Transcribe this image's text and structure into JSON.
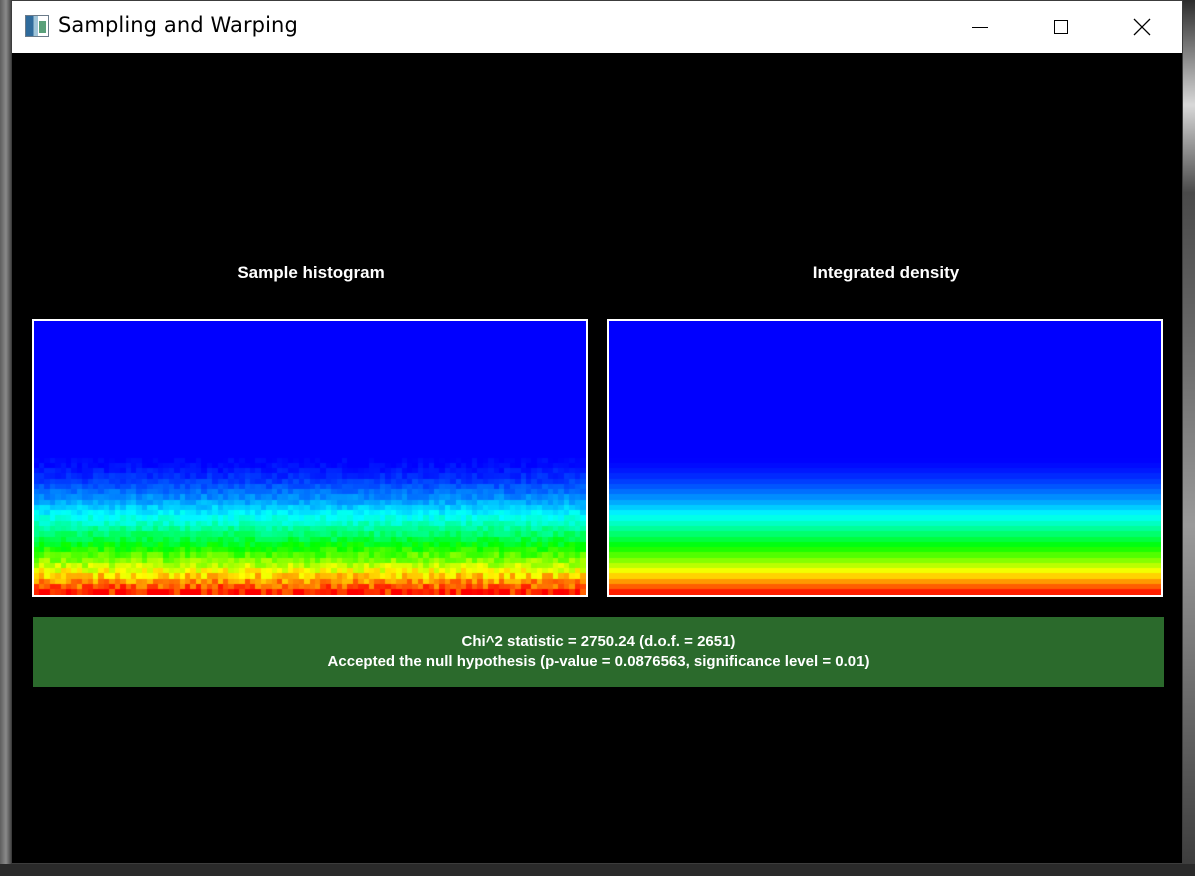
{
  "window": {
    "title": "Sampling and Warping",
    "icon": "app-icon",
    "controls": {
      "minimize_icon": "minimize-icon",
      "maximize_icon": "maximize-icon",
      "close_icon": "close-icon"
    }
  },
  "panels": {
    "histogram": {
      "title": "Sample histogram"
    },
    "density": {
      "title": "Integrated density"
    }
  },
  "result": {
    "line1": "Chi^2 statistic = 2750.24 (d.o.f. = 2651)",
    "line2": "Accepted the null hypothesis (p-value = 0.0876563, significance level = 0.01)",
    "background": "#2b6a2c"
  },
  "colors": {
    "colormap": [
      "#0000ff",
      "#00ffff",
      "#00ff00",
      "#ffff00",
      "#ff0000"
    ],
    "border": "#ffffff",
    "background": "#000000"
  }
}
